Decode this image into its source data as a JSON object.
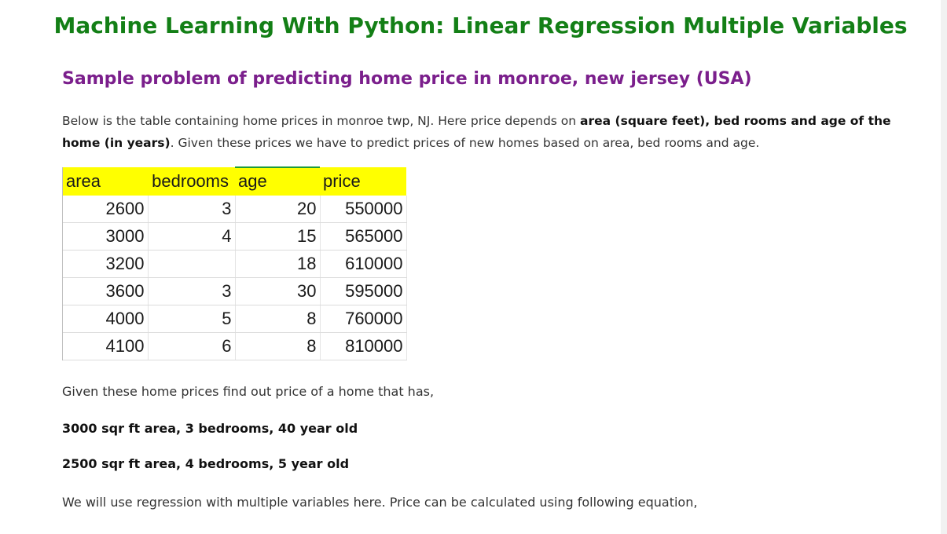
{
  "document": {
    "title": "Machine Learning With Python: Linear Regression Multiple Variables",
    "subtitle": "Sample problem of predicting home price in monroe, new jersey (USA)",
    "intro": {
      "text_1": "Below is the table containing home prices in monroe twp, NJ. Here price depends on ",
      "bold_1": "area (square feet), bed rooms and age of the home (in years)",
      "text_2": ". Given these prices we have to predict prices of new homes based on area, bed rooms and age."
    },
    "table": {
      "headers": [
        "area",
        "bedrooms",
        "age",
        "price"
      ],
      "rows": [
        [
          "2600",
          "3",
          "20",
          "550000"
        ],
        [
          "3000",
          "4",
          "15",
          "565000"
        ],
        [
          "3200",
          "",
          "18",
          "610000"
        ],
        [
          "3600",
          "3",
          "30",
          "595000"
        ],
        [
          "4000",
          "5",
          "8",
          "760000"
        ],
        [
          "4100",
          "6",
          "8",
          "810000"
        ]
      ],
      "header_color": "#ffff00"
    },
    "question_intro": "Given these home prices find out price of a home that has,",
    "question_1": "3000 sqr ft area, 3 bedrooms, 40 year old",
    "question_2": "2500 sqr ft area, 4 bedrooms, 5 year old",
    "closing": "We will use regression with multiple variables here. Price can be calculated using following equation,"
  },
  "colors": {
    "title": "#137f16",
    "subtitle": "#7b1f8c"
  }
}
